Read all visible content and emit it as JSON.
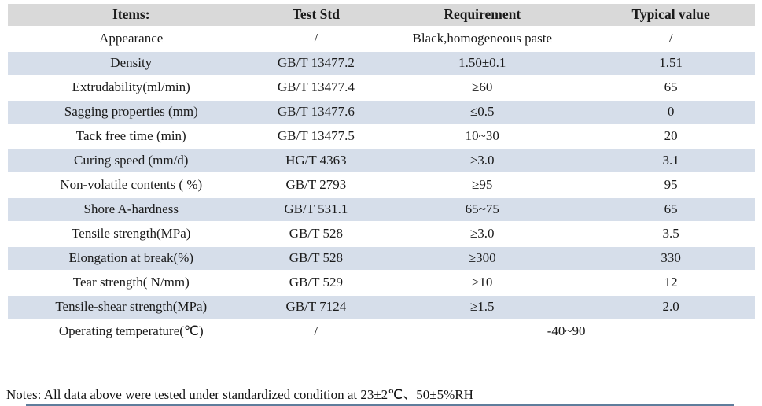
{
  "colors": {
    "header_bg": "#d9d9d9",
    "row_alt_bg": "#d6deea",
    "partial_bar": "#5f7d9c",
    "text": "#1a1a1a"
  },
  "notes": "Notes: All data above were tested under standardized condition at 23±2℃、50±5%RH",
  "table": {
    "columns": [
      "Items:",
      "Test Std",
      "Requirement",
      "Typical value"
    ],
    "rows": [
      {
        "cells": [
          "Appearance",
          "/",
          "Black,homogeneous paste",
          "/"
        ]
      },
      {
        "cells": [
          "Density",
          "GB/T 13477.2",
          "1.50±0.1",
          "1.51"
        ]
      },
      {
        "cells": [
          "Extrudability(ml/min)",
          "GB/T 13477.4",
          "≥60",
          "65"
        ]
      },
      {
        "cells": [
          "Sagging properties (mm)",
          "GB/T 13477.6",
          "≤0.5",
          "0"
        ]
      },
      {
        "cells": [
          "Tack free time (min)",
          "GB/T 13477.5",
          "10~30",
          "20"
        ]
      },
      {
        "cells": [
          "Curing speed (mm/d)",
          "HG/T 4363",
          "≥3.0",
          "3.1"
        ]
      },
      {
        "cells": [
          "Non-volatile contents ( %)",
          "GB/T 2793",
          "≥95",
          "95"
        ]
      },
      {
        "cells": [
          "Shore A-hardness",
          "GB/T 531.1",
          "65~75",
          "65"
        ]
      },
      {
        "cells": [
          "Tensile strength(MPa)",
          "GB/T 528",
          "≥3.0",
          "3.5"
        ]
      },
      {
        "cells": [
          "Elongation at break(%)",
          "GB/T 528",
          "≥300",
          "330"
        ]
      },
      {
        "cells": [
          "Tear strength( N/mm)",
          "GB/T 529",
          "≥10",
          "12"
        ]
      },
      {
        "cells": [
          "Tensile-shear strength(MPa)",
          "GB/T 7124",
          "≥1.5",
          "2.0"
        ]
      },
      {
        "cells": [
          "Operating temperature(℃)",
          "/",
          "-40~90"
        ]
      }
    ]
  }
}
